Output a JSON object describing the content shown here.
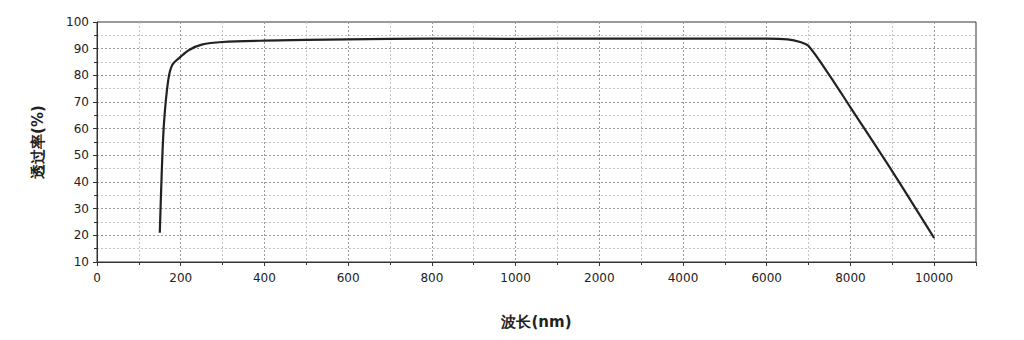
{
  "chart_data": {
    "type": "line",
    "x_label": "波长(nm)",
    "y_label": "透过率(%)",
    "x": [
      150,
      155,
      160,
      170,
      180,
      200,
      220,
      250,
      300,
      400,
      600,
      800,
      1000,
      2000,
      4000,
      6000,
      6500,
      6800,
      7000,
      7500,
      8000,
      9000,
      10000
    ],
    "values": [
      21,
      45,
      62,
      78,
      84,
      87,
      89.5,
      91.5,
      92.5,
      93,
      93.5,
      93.8,
      93.7,
      93.8,
      93.8,
      93.8,
      93.5,
      92.5,
      91,
      80,
      68,
      44,
      19
    ],
    "color": "#222222",
    "xlim": [
      0,
      11000
    ],
    "xticks": [
      0,
      200,
      400,
      600,
      800,
      1000,
      2000,
      4000,
      6000,
      8000,
      10000
    ],
    "ylim": [
      10,
      100
    ],
    "yticks": [
      10,
      20,
      30,
      40,
      50,
      60,
      70,
      80,
      90,
      100
    ],
    "grid": true
  }
}
